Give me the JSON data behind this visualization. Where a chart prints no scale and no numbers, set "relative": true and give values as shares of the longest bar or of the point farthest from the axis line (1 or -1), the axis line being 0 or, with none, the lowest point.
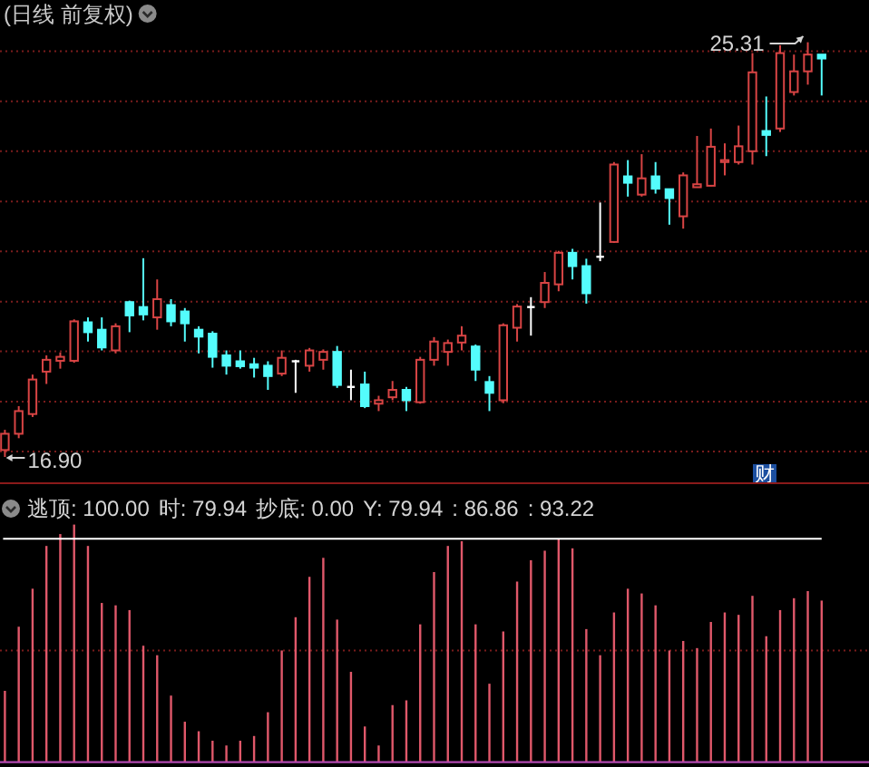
{
  "chart_data": [
    {
      "type": "candlestick",
      "title": "(日线 前复权)",
      "categories": [
        null,
        null,
        null,
        null,
        null,
        null,
        null,
        null,
        null,
        null,
        null,
        null,
        null,
        null,
        null,
        null,
        null,
        null,
        null,
        null,
        null,
        null,
        null,
        null,
        null,
        null,
        null,
        null,
        null,
        null,
        null,
        null,
        null,
        null,
        null,
        null,
        null,
        null,
        null,
        null,
        null,
        null,
        null,
        null,
        null,
        null,
        null,
        null,
        null,
        null,
        null,
        null,
        null,
        null,
        null,
        null,
        null,
        null,
        null,
        null
      ],
      "ohlc": [
        [
          17.04,
          17.45,
          16.9,
          17.37
        ],
        [
          17.37,
          17.93,
          17.28,
          17.83
        ],
        [
          17.77,
          18.57,
          17.71,
          18.47
        ],
        [
          18.63,
          18.96,
          18.38,
          18.87
        ],
        [
          18.85,
          19.02,
          18.69,
          18.93
        ],
        [
          18.85,
          19.69,
          18.81,
          19.65
        ],
        [
          19.63,
          19.73,
          19.24,
          19.43
        ],
        [
          19.48,
          19.73,
          19.06,
          19.12
        ],
        [
          19.06,
          19.61,
          19.0,
          19.55
        ],
        [
          20.04,
          20.07,
          19.43,
          19.77
        ],
        [
          19.94,
          20.93,
          19.67,
          19.79
        ],
        [
          19.73,
          20.5,
          19.48,
          20.1
        ],
        [
          19.98,
          20.1,
          19.55,
          19.65
        ],
        [
          19.85,
          19.92,
          19.24,
          19.61
        ],
        [
          19.48,
          19.55,
          19.0,
          19.34
        ],
        [
          19.4,
          19.45,
          18.71,
          18.93
        ],
        [
          18.96,
          19.06,
          18.57,
          18.75
        ],
        [
          18.84,
          19.06,
          18.69,
          18.74
        ],
        [
          18.78,
          18.91,
          18.51,
          18.71
        ],
        [
          18.75,
          18.84,
          18.26,
          18.54
        ],
        [
          18.59,
          19.06,
          18.54,
          18.91
        ],
        [
          18.84,
          18.87,
          18.2,
          18.84
        ],
        [
          18.75,
          19.11,
          18.63,
          19.06
        ],
        [
          18.87,
          19.08,
          18.67,
          19.03
        ],
        [
          19.03,
          19.15,
          18.3,
          18.36
        ],
        [
          18.32,
          18.67,
          18.05,
          18.32
        ],
        [
          18.37,
          18.63,
          17.89,
          17.93
        ],
        [
          17.98,
          18.14,
          17.83,
          18.05
        ],
        [
          18.11,
          18.44,
          18.05,
          18.26
        ],
        [
          18.26,
          18.32,
          17.83,
          18.05
        ],
        [
          18.01,
          18.93,
          17.98,
          18.87
        ],
        [
          18.87,
          19.33,
          18.75,
          19.24
        ],
        [
          19.03,
          19.28,
          18.75,
          19.21
        ],
        [
          19.22,
          19.55,
          19.06,
          19.36
        ],
        [
          19.14,
          19.18,
          18.44,
          18.67
        ],
        [
          18.42,
          18.54,
          17.83,
          18.2
        ],
        [
          18.05,
          19.61,
          17.99,
          19.57
        ],
        [
          19.52,
          20.0,
          19.24,
          19.95
        ],
        [
          19.94,
          20.14,
          19.36,
          19.94
        ],
        [
          20.04,
          20.65,
          19.92,
          20.43
        ],
        [
          20.4,
          21.08,
          20.26,
          21.04
        ],
        [
          21.04,
          21.12,
          20.5,
          20.77
        ],
        [
          20.77,
          20.92,
          20.01,
          20.22
        ],
        [
          20.96,
          22.06,
          20.87,
          20.96
        ],
        [
          21.26,
          22.88,
          21.24,
          22.83
        ],
        [
          22.59,
          22.92,
          22.18,
          22.46
        ],
        [
          22.22,
          23.04,
          22.18,
          22.55
        ],
        [
          22.59,
          22.88,
          22.24,
          22.34
        ],
        [
          22.33,
          22.34,
          21.61,
          22.15
        ],
        [
          21.78,
          22.67,
          21.53,
          22.61
        ],
        [
          22.37,
          23.41,
          22.37,
          22.43
        ],
        [
          22.4,
          23.56,
          22.39,
          23.19
        ],
        [
          22.88,
          23.26,
          22.61,
          22.92
        ],
        [
          22.88,
          23.62,
          22.83,
          23.2
        ],
        [
          23.1,
          25.09,
          22.83,
          24.7
        ],
        [
          23.51,
          24.21,
          23.0,
          23.43
        ],
        [
          23.56,
          25.25,
          23.49,
          25.09
        ],
        [
          24.3,
          25.06,
          24.23,
          24.72
        ],
        [
          24.72,
          25.31,
          24.45,
          25.06
        ],
        [
          25.06,
          25.06,
          24.23,
          24.98
        ]
      ],
      "colors": [
        "#d84444",
        "#d84444",
        "#d84444",
        "#d84444",
        "#d84444",
        "#d84444",
        "#54fcfc",
        "#54fcfc",
        "#d84444",
        "#54fcfc",
        "#54fcfc",
        "#d84444",
        "#54fcfc",
        "#54fcfc",
        "#54fcfc",
        "#54fcfc",
        "#54fcfc",
        "#54fcfc",
        "#54fcfc",
        "#54fcfc",
        "#d84444",
        "#ffffff",
        "#d84444",
        "#d84444",
        "#54fcfc",
        "#ffffff",
        "#54fcfc",
        "#d84444",
        "#d84444",
        "#54fcfc",
        "#d84444",
        "#d84444",
        "#d84444",
        "#d84444",
        "#54fcfc",
        "#54fcfc",
        "#d84444",
        "#d84444",
        "#ffffff",
        "#d84444",
        "#d84444",
        "#54fcfc",
        "#54fcfc",
        "#ffffff",
        "#d84444",
        "#54fcfc",
        "#d84444",
        "#54fcfc",
        "#54fcfc",
        "#d84444",
        "#d84444",
        "#d84444",
        "#d84444",
        "#d84444",
        "#d84444",
        "#54fcfc",
        "#d84444",
        "#d84444",
        "#d84444",
        "#54fcfc"
      ],
      "yticks": [
        {
          "value": 17.01,
          "label": null
        },
        {
          "value": 18.02,
          "label": null
        },
        {
          "value": 19.04,
          "label": null
        },
        {
          "value": 20.05,
          "label": null
        },
        {
          "value": 21.07,
          "label": null
        },
        {
          "value": 22.08,
          "label": null
        },
        {
          "value": 23.1,
          "label": null
        },
        {
          "value": 24.11,
          "label": null
        },
        {
          "value": 25.13,
          "label": null
        }
      ],
      "grid": "y",
      "annotations": [
        "25.31",
        "16.90",
        "财"
      ]
    },
    {
      "type": "bar",
      "relative": true,
      "categories": [
        null,
        null,
        null,
        null,
        null,
        null,
        null,
        null,
        null,
        null,
        null,
        null,
        null,
        null,
        null,
        null,
        null,
        null,
        null,
        null,
        null,
        null,
        null,
        null,
        null,
        null,
        null,
        null,
        null,
        null,
        null,
        null,
        null,
        null,
        null,
        null,
        null,
        null,
        null,
        null,
        null,
        null,
        null,
        null,
        null,
        null,
        null,
        null,
        null,
        null,
        null,
        null,
        null,
        null,
        null,
        null,
        null,
        null,
        null,
        null
      ],
      "values": [
        0.3,
        0.57,
        0.73,
        0.91,
        0.96,
        1,
        0.91,
        0.67,
        0.66,
        0.64,
        0.49,
        0.45,
        0.28,
        0.17,
        0.13,
        0.09,
        0.07,
        0.09,
        0.11,
        0.21,
        0.47,
        0.61,
        0.78,
        0.86,
        0.6,
        0.38,
        0.15,
        0.07,
        0.24,
        0.26,
        0.58,
        0.8,
        0.91,
        0.93,
        0.58,
        0.33,
        0.55,
        0.76,
        0.85,
        0.89,
        0.94,
        0.9,
        0.56,
        0.45,
        0.63,
        0.73,
        0.71,
        0.66,
        0.47,
        0.51,
        0.48,
        0.59,
        0.63,
        0.62,
        0.7,
        0.53,
        0.64,
        0.69,
        0.72,
        0.68
      ],
      "color": "#e0586a",
      "ref_lines": [
        {
          "axis": "y",
          "value": 0.94,
          "color": "#ffffff"
        },
        {
          "axis": "y",
          "value": 0.47,
          "color": "#7a1c1c",
          "line_style": "dotted"
        }
      ],
      "annotations": [
        "逃顶: 100.00",
        "时: 79.94",
        "抄底: 0.00",
        "Y: 79.94",
        ": 86.86",
        ": 93.22"
      ]
    }
  ]
}
